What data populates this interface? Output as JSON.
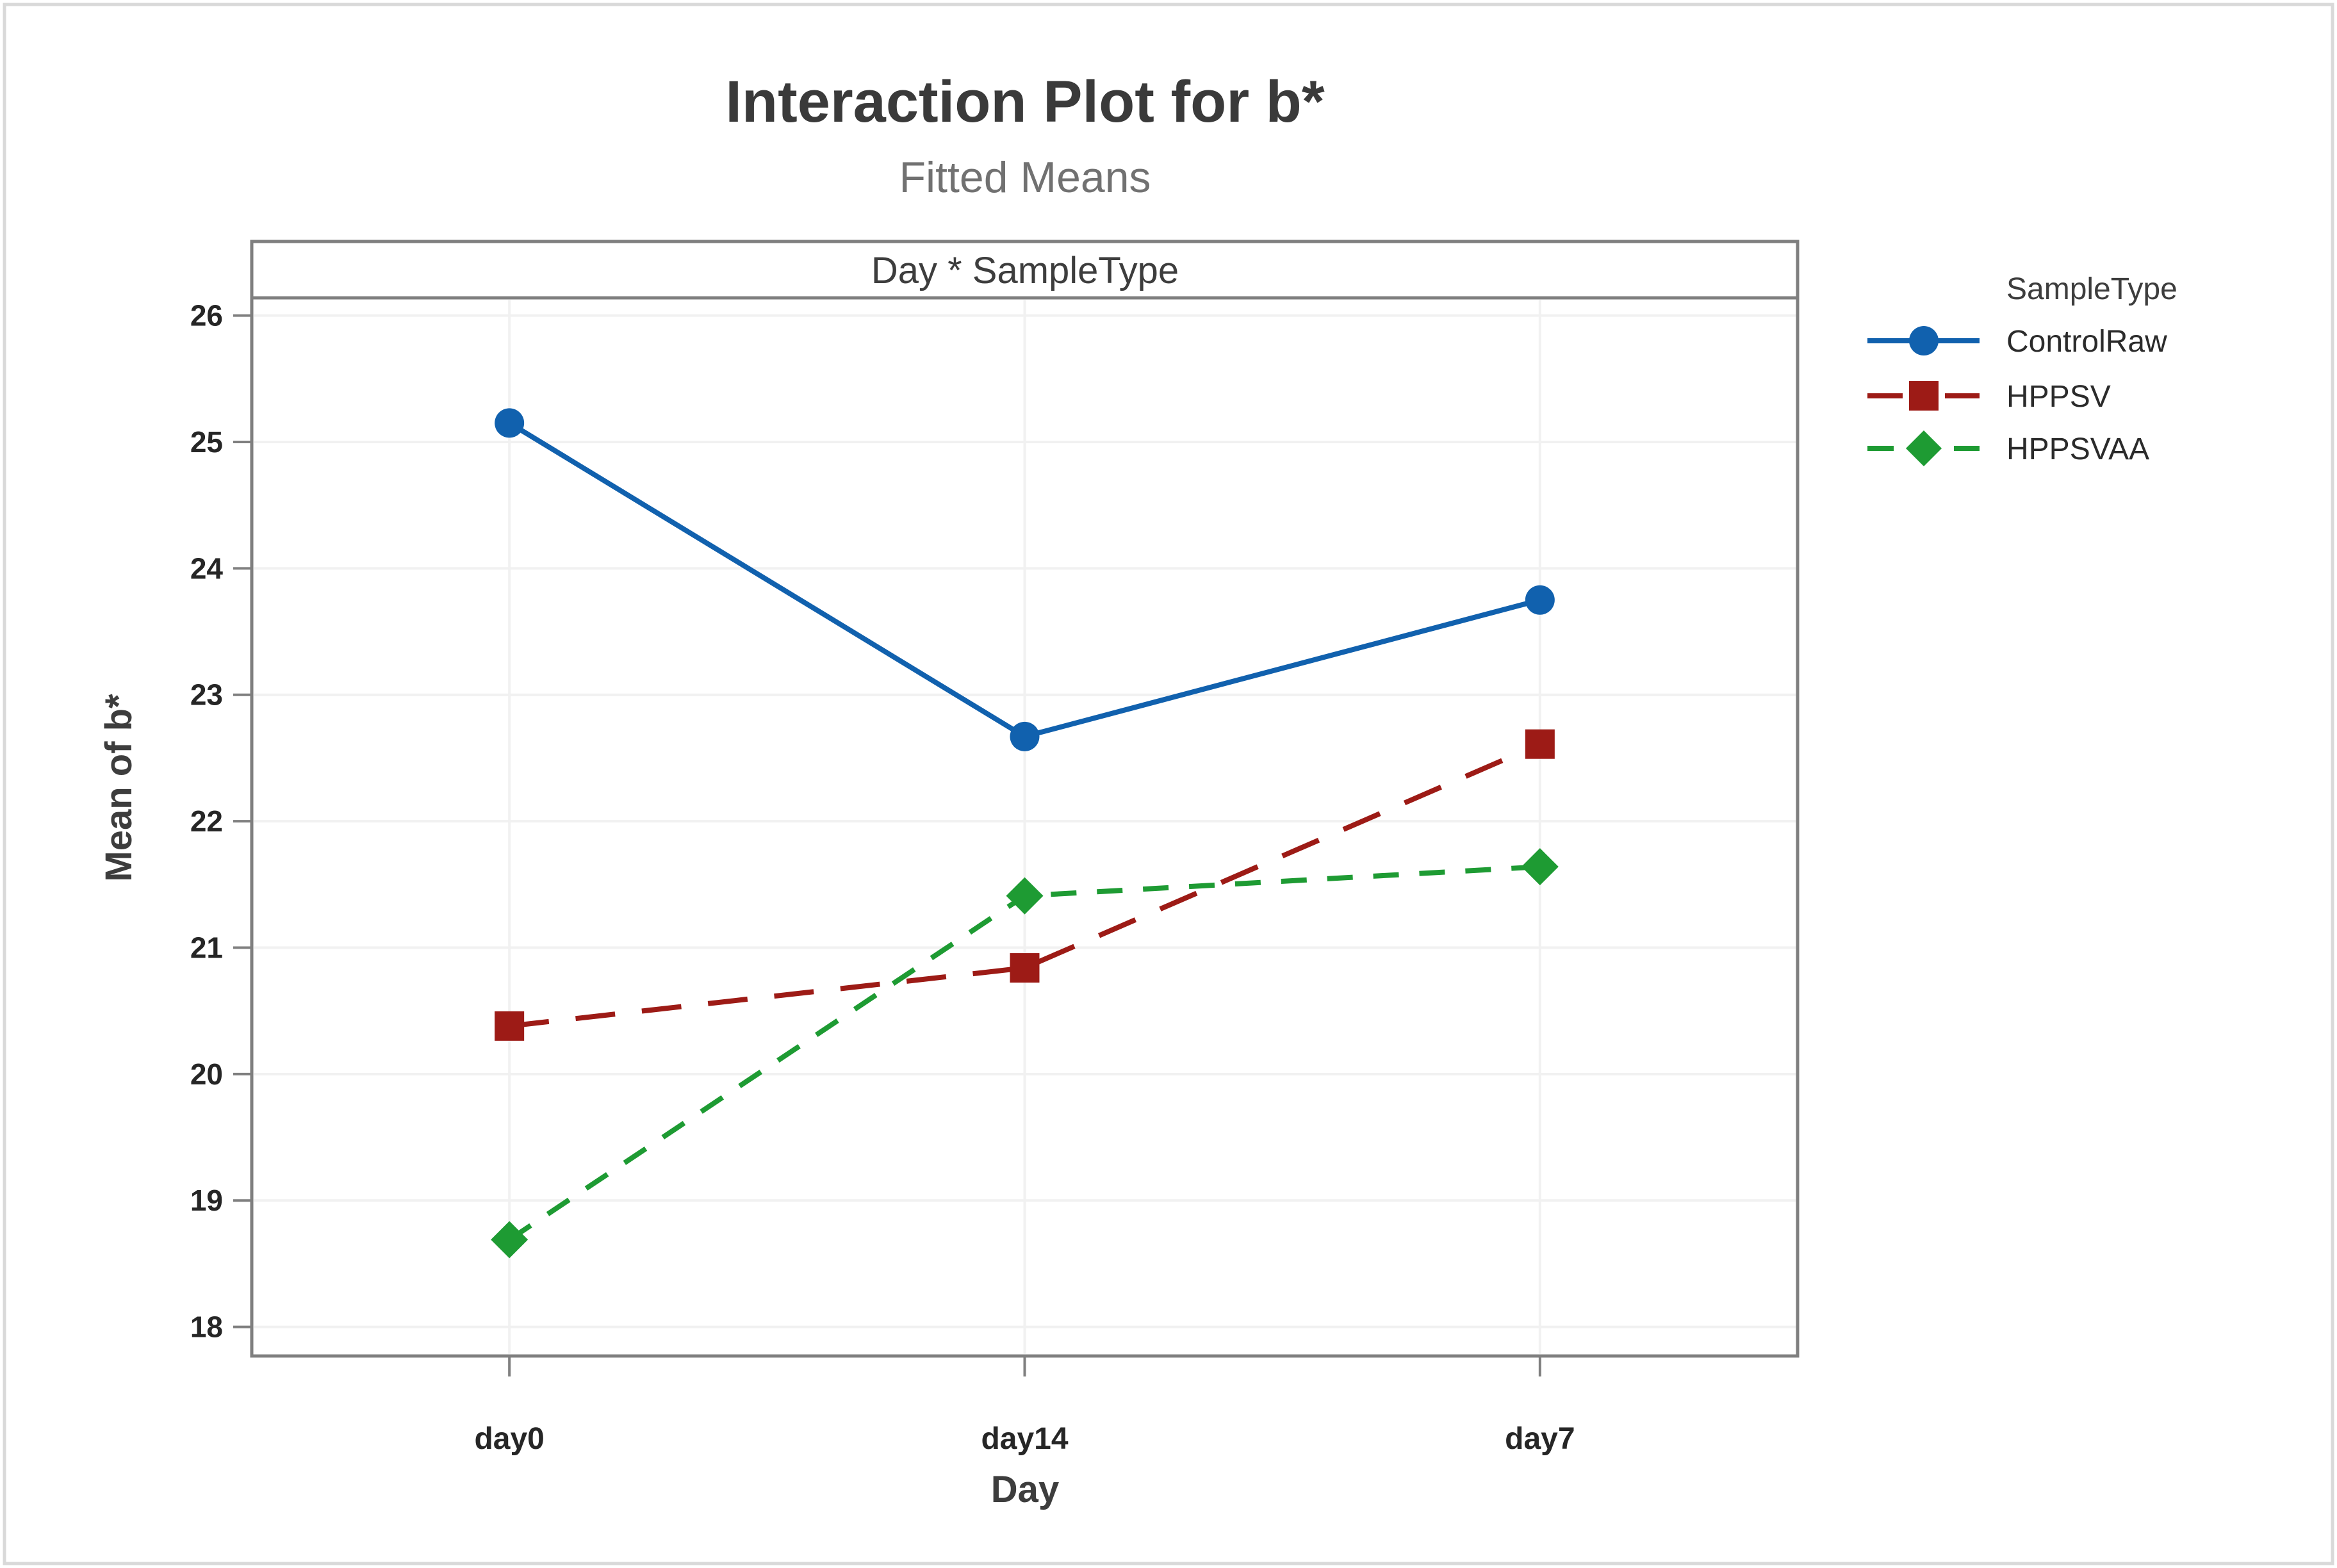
{
  "window": {
    "background": "#ffffff",
    "border_color": "#d9d9d9"
  },
  "chart_data": {
    "type": "line",
    "title": "Interaction Plot for b*",
    "subtitle": "Fitted Means",
    "panel_label": "Day * SampleType",
    "xlabel": "Day",
    "ylabel": "Mean of b*",
    "categories": [
      "day0",
      "day14",
      "day7"
    ],
    "ytick_labels": [
      "26",
      "25",
      "24",
      "23",
      "22",
      "21",
      "20",
      "19",
      "18"
    ],
    "ylim": [
      17.77,
      26.14
    ],
    "grid": "light-gray-both-axes",
    "legend_title": "SampleType",
    "legend_position": "right",
    "frame_color": "#7f7f7f",
    "grid_color": "#f1f1f1",
    "series": [
      {
        "name": "ControlRaw",
        "color": "#1161AE",
        "marker": "circle",
        "line_style": "solid",
        "values": [
          25.15,
          22.67,
          23.75
        ]
      },
      {
        "name": "HPPSV",
        "color": "#9D1B16",
        "marker": "square",
        "line_style": "dash",
        "values": [
          20.38,
          20.84,
          22.61
        ]
      },
      {
        "name": "HPPSVAA",
        "color": "#1E9B33",
        "marker": "diamond",
        "line_style": "short-dash",
        "values": [
          18.69,
          21.41,
          21.64
        ]
      }
    ]
  }
}
